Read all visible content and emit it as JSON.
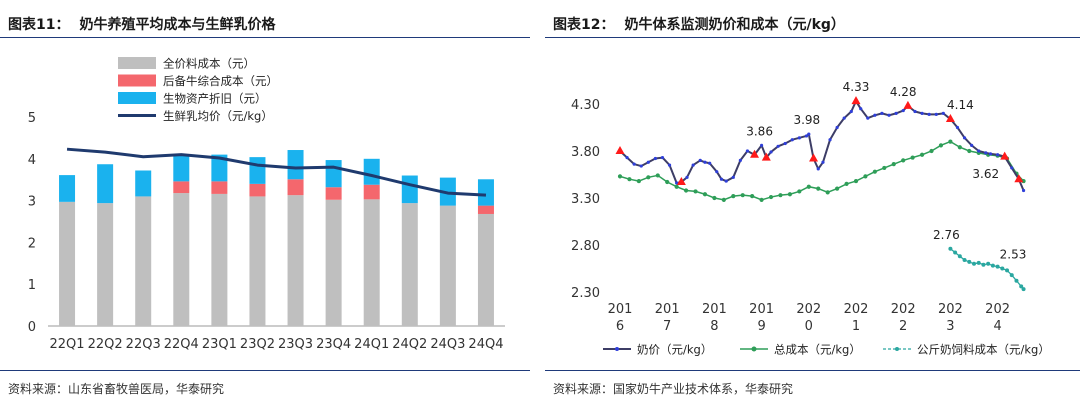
{
  "left": {
    "fig_label": "图表11：",
    "title": "奶牛养殖平均成本与生鲜乳价格",
    "source": "资料来源：山东省畜牧兽医局，华泰研究"
  },
  "right": {
    "fig_label": "图表12：",
    "title": "奶牛体系监测奶价和成本（元/kg）",
    "source": "资料来源：国家奶牛产业技术体系，华泰研究"
  },
  "colors": {
    "feed": "#bfbfbf",
    "reserve": "#f4676d",
    "depreciation": "#1ab2ee",
    "raw_milk": "#1f3a6e",
    "milk_price": "#3d3d66",
    "milk_price_highlight": "#2f3fd9",
    "total_cost": "#2e9e58",
    "feed_cost_per_kg": "#2aa7a0",
    "marker_red": "#ff1a1a",
    "rule": "#1f3a7a"
  },
  "chart_data": [
    {
      "type": "bar",
      "stacked": true,
      "categories": [
        "22Q1",
        "22Q2",
        "22Q3",
        "22Q4",
        "23Q1",
        "23Q2",
        "23Q3",
        "23Q4",
        "24Q1",
        "24Q2",
        "24Q3",
        "24Q4"
      ],
      "ylim": [
        0,
        5
      ],
      "yticks": [
        "0",
        "1",
        "2",
        "3",
        "4",
        "5"
      ],
      "legend_position": "top-left",
      "series": [
        {
          "name": "全价料成本（元）",
          "kind": "bar",
          "values": [
            2.97,
            2.94,
            3.1,
            3.18,
            3.16,
            3.1,
            3.13,
            3.02,
            3.03,
            2.94,
            2.88,
            2.68
          ]
        },
        {
          "name": "后备牛综合成本（元）",
          "kind": "bar",
          "values": [
            0,
            0,
            0,
            0.28,
            0.3,
            0.3,
            0.38,
            0.3,
            0.35,
            0,
            0,
            0.2
          ]
        },
        {
          "name": "生物资产折旧（元）",
          "kind": "bar",
          "values": [
            0.64,
            0.93,
            0.62,
            0.62,
            0.64,
            0.64,
            0.7,
            0.65,
            0.62,
            0.66,
            0.67,
            0.63
          ]
        },
        {
          "name": "生鲜乳均价（元/kg）",
          "kind": "line",
          "values": [
            4.23,
            4.16,
            4.05,
            4.1,
            4.02,
            3.85,
            3.78,
            3.8,
            3.6,
            3.38,
            3.18,
            3.13
          ]
        }
      ]
    },
    {
      "type": "line",
      "ylim": [
        2.3,
        4.3
      ],
      "yticks": [
        "2.30",
        "2.80",
        "3.30",
        "3.80",
        "4.30"
      ],
      "x_range": [
        2016.0,
        2024.75
      ],
      "xticks": [
        {
          "value": 2016.0,
          "line1": "201",
          "line2": "6"
        },
        {
          "value": 2017.0,
          "line1": "201",
          "line2": "7"
        },
        {
          "value": 2018.0,
          "line1": "201",
          "line2": "8"
        },
        {
          "value": 2019.0,
          "line1": "201",
          "line2": "9"
        },
        {
          "value": 2020.0,
          "line1": "202",
          "line2": "0"
        },
        {
          "value": 2021.0,
          "line1": "202",
          "line2": "1"
        },
        {
          "value": 2022.0,
          "line1": "202",
          "line2": "2"
        },
        {
          "value": 2023.0,
          "line1": "202",
          "line2": "3"
        },
        {
          "value": 2024.0,
          "line1": "202",
          "line2": "4"
        }
      ],
      "legend_position": "bottom",
      "series": [
        {
          "name": "奶价（元/kg）",
          "x": [
            2016.0,
            2016.15,
            2016.3,
            2016.45,
            2016.6,
            2016.75,
            2016.9,
            2017.05,
            2017.2,
            2017.3,
            2017.42,
            2017.55,
            2017.7,
            2017.8,
            2017.9,
            2018.05,
            2018.15,
            2018.25,
            2018.4,
            2018.55,
            2018.7,
            2018.85,
            2019.0,
            2019.1,
            2019.2,
            2019.35,
            2019.5,
            2019.65,
            2019.8,
            2019.95,
            2020.0,
            2020.1,
            2020.2,
            2020.3,
            2020.45,
            2020.6,
            2020.75,
            2020.9,
            2021.0,
            2021.1,
            2021.25,
            2021.4,
            2021.55,
            2021.7,
            2021.85,
            2022.0,
            2022.1,
            2022.25,
            2022.4,
            2022.55,
            2022.7,
            2022.85,
            2023.0,
            2023.15,
            2023.3,
            2023.45,
            2023.6,
            2023.75,
            2023.85,
            2024.0,
            2024.15,
            2024.3,
            2024.45,
            2024.55
          ],
          "y": [
            3.8,
            3.73,
            3.66,
            3.64,
            3.68,
            3.72,
            3.73,
            3.65,
            3.46,
            3.47,
            3.52,
            3.65,
            3.7,
            3.68,
            3.67,
            3.58,
            3.5,
            3.48,
            3.52,
            3.7,
            3.8,
            3.76,
            3.86,
            3.73,
            3.79,
            3.85,
            3.88,
            3.92,
            3.94,
            3.96,
            3.98,
            3.72,
            3.61,
            3.68,
            3.92,
            4.05,
            4.15,
            4.22,
            4.33,
            4.25,
            4.15,
            4.18,
            4.2,
            4.18,
            4.2,
            4.23,
            4.28,
            4.22,
            4.2,
            4.19,
            4.19,
            4.2,
            4.14,
            4.05,
            3.94,
            3.86,
            3.8,
            3.78,
            3.77,
            3.76,
            3.74,
            3.62,
            3.5,
            3.38
          ]
        },
        {
          "name": "总成本（元/kg）",
          "x": [
            2016.0,
            2016.2,
            2016.4,
            2016.6,
            2016.8,
            2017.0,
            2017.2,
            2017.4,
            2017.6,
            2017.8,
            2018.0,
            2018.2,
            2018.4,
            2018.6,
            2018.8,
            2019.0,
            2019.2,
            2019.4,
            2019.6,
            2019.8,
            2020.0,
            2020.2,
            2020.4,
            2020.6,
            2020.8,
            2021.0,
            2021.2,
            2021.4,
            2021.6,
            2021.8,
            2022.0,
            2022.2,
            2022.4,
            2022.6,
            2022.8,
            2023.0,
            2023.2,
            2023.4,
            2023.6,
            2023.8,
            2024.0,
            2024.2,
            2024.4,
            2024.55
          ],
          "y": [
            3.53,
            3.5,
            3.48,
            3.52,
            3.54,
            3.47,
            3.42,
            3.38,
            3.37,
            3.34,
            3.3,
            3.28,
            3.32,
            3.33,
            3.32,
            3.28,
            3.31,
            3.33,
            3.34,
            3.37,
            3.42,
            3.4,
            3.36,
            3.4,
            3.45,
            3.48,
            3.53,
            3.58,
            3.62,
            3.66,
            3.7,
            3.73,
            3.76,
            3.8,
            3.86,
            3.9,
            3.84,
            3.8,
            3.78,
            3.76,
            3.75,
            3.72,
            3.56,
            3.48
          ]
        },
        {
          "name": "公斤奶饲料成本（元/kg）",
          "x": [
            2023.0,
            2023.1,
            2023.2,
            2023.3,
            2023.4,
            2023.5,
            2023.6,
            2023.7,
            2023.8,
            2023.9,
            2024.0,
            2024.1,
            2024.2,
            2024.3,
            2024.4,
            2024.5,
            2024.55
          ],
          "y": [
            2.76,
            2.72,
            2.68,
            2.64,
            2.62,
            2.6,
            2.61,
            2.59,
            2.6,
            2.58,
            2.57,
            2.55,
            2.53,
            2.48,
            2.42,
            2.36,
            2.33
          ]
        }
      ],
      "annotations": [
        {
          "text": "3.86",
          "x": 2019.0,
          "y": 3.86
        },
        {
          "text": "3.98",
          "x": 2020.0,
          "y": 3.98
        },
        {
          "text": "4.33",
          "x": 2021.0,
          "y": 4.33
        },
        {
          "text": "4.28",
          "x": 2022.0,
          "y": 4.28
        },
        {
          "text": "4.14",
          "x": 2023.0,
          "y": 4.14
        },
        {
          "text": "3.62",
          "x": 2024.3,
          "y": 3.62
        },
        {
          "text": "2.76",
          "x": 2023.0,
          "y": 2.76
        },
        {
          "text": "2.53",
          "x": 2024.2,
          "y": 2.53
        }
      ]
    }
  ]
}
